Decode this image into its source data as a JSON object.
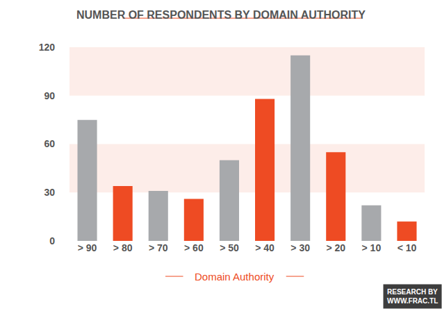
{
  "chart_data": {
    "type": "bar",
    "title": "NUMBER OF RESPONDENTS BY DOMAIN AUTHORITY",
    "x_label": "Domain Authority",
    "categories": [
      "> 90",
      "> 80",
      "> 70",
      "> 60",
      "> 50",
      "> 40",
      "> 30",
      "> 20",
      "> 10",
      "< 10"
    ],
    "values": [
      75,
      34,
      31,
      26,
      50,
      88,
      115,
      55,
      22,
      12
    ],
    "colors": [
      "#a7a9ac",
      "#ee4b23",
      "#a7a9ac",
      "#ee4b23",
      "#a7a9ac",
      "#ee4b23",
      "#a7a9ac",
      "#ee4b23",
      "#a7a9ac",
      "#ee4b23"
    ],
    "ylim": [
      0,
      120
    ],
    "yticks": [
      0,
      30,
      60,
      90,
      120
    ],
    "grid": false,
    "annotations": [
      "RESEARCH BY",
      "WWW.FRAC.TL"
    ]
  }
}
